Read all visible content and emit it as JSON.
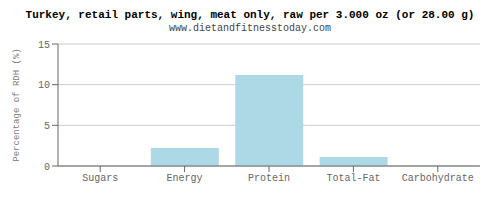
{
  "chart_data": {
    "type": "bar",
    "title": "Turkey, retail parts, wing, meat only, raw per 3.000 oz (or 28.00 g)",
    "subtitle": "www.dietandfitnesstoday.com",
    "categories": [
      "Sugars",
      "Energy",
      "Protein",
      "Total-Fat",
      "Carbohydrate"
    ],
    "values": [
      0.0,
      2.2,
      11.2,
      1.1,
      0.05
    ],
    "color": "#add8e6",
    "ylabel": "Percentage of RDH (%)",
    "ylim": [
      0,
      15
    ],
    "yticks": [
      0,
      5,
      10,
      15
    ],
    "grid": true
  }
}
